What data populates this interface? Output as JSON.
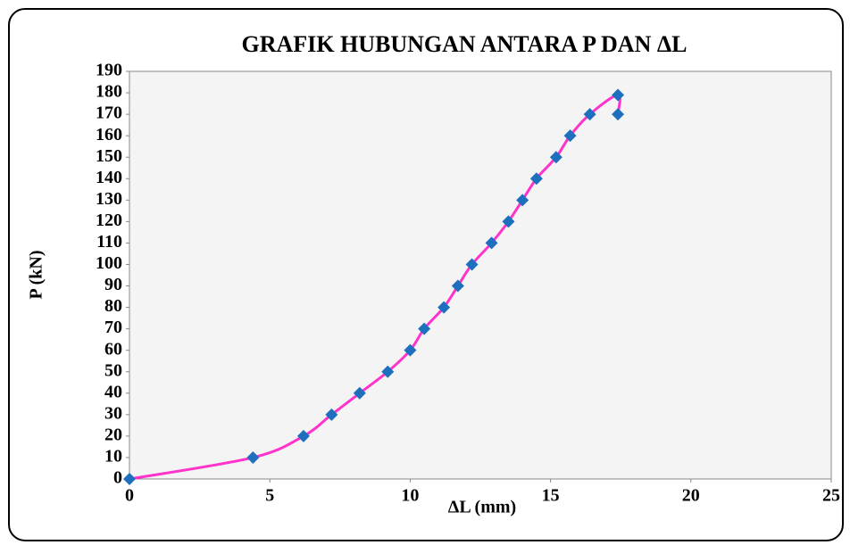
{
  "chart_data": {
    "type": "scatter",
    "title": "GRAFIK HUBUNGAN ANTARA P DAN ΔL",
    "x_label": "ΔL (mm)",
    "y_label": "P (kN)",
    "series": [
      {
        "color": "#ff33cc",
        "marker_color": "#1f6fbf",
        "smooth": true,
        "x": [
          0,
          4.4,
          6.2,
          7.2,
          8.2,
          9.2,
          10.0,
          10.5,
          11.2,
          11.7,
          12.2,
          12.9,
          13.5,
          14.0,
          14.5,
          15.2,
          15.7,
          16.4,
          17.4,
          17.4
        ],
        "values": [
          0,
          10,
          20,
          30,
          40,
          50,
          60,
          70,
          80,
          90,
          100,
          110,
          120,
          130,
          140,
          150,
          160,
          170,
          179,
          170
        ]
      }
    ],
    "xlim": [
      0,
      25
    ],
    "xticks": [
      0,
      5,
      10,
      15,
      20,
      25
    ],
    "ylim": [
      0,
      190
    ],
    "yticks": [
      0,
      10,
      20,
      30,
      40,
      50,
      60,
      70,
      80,
      90,
      100,
      110,
      120,
      130,
      140,
      150,
      160,
      170,
      180,
      190
    ],
    "grid": false
  }
}
